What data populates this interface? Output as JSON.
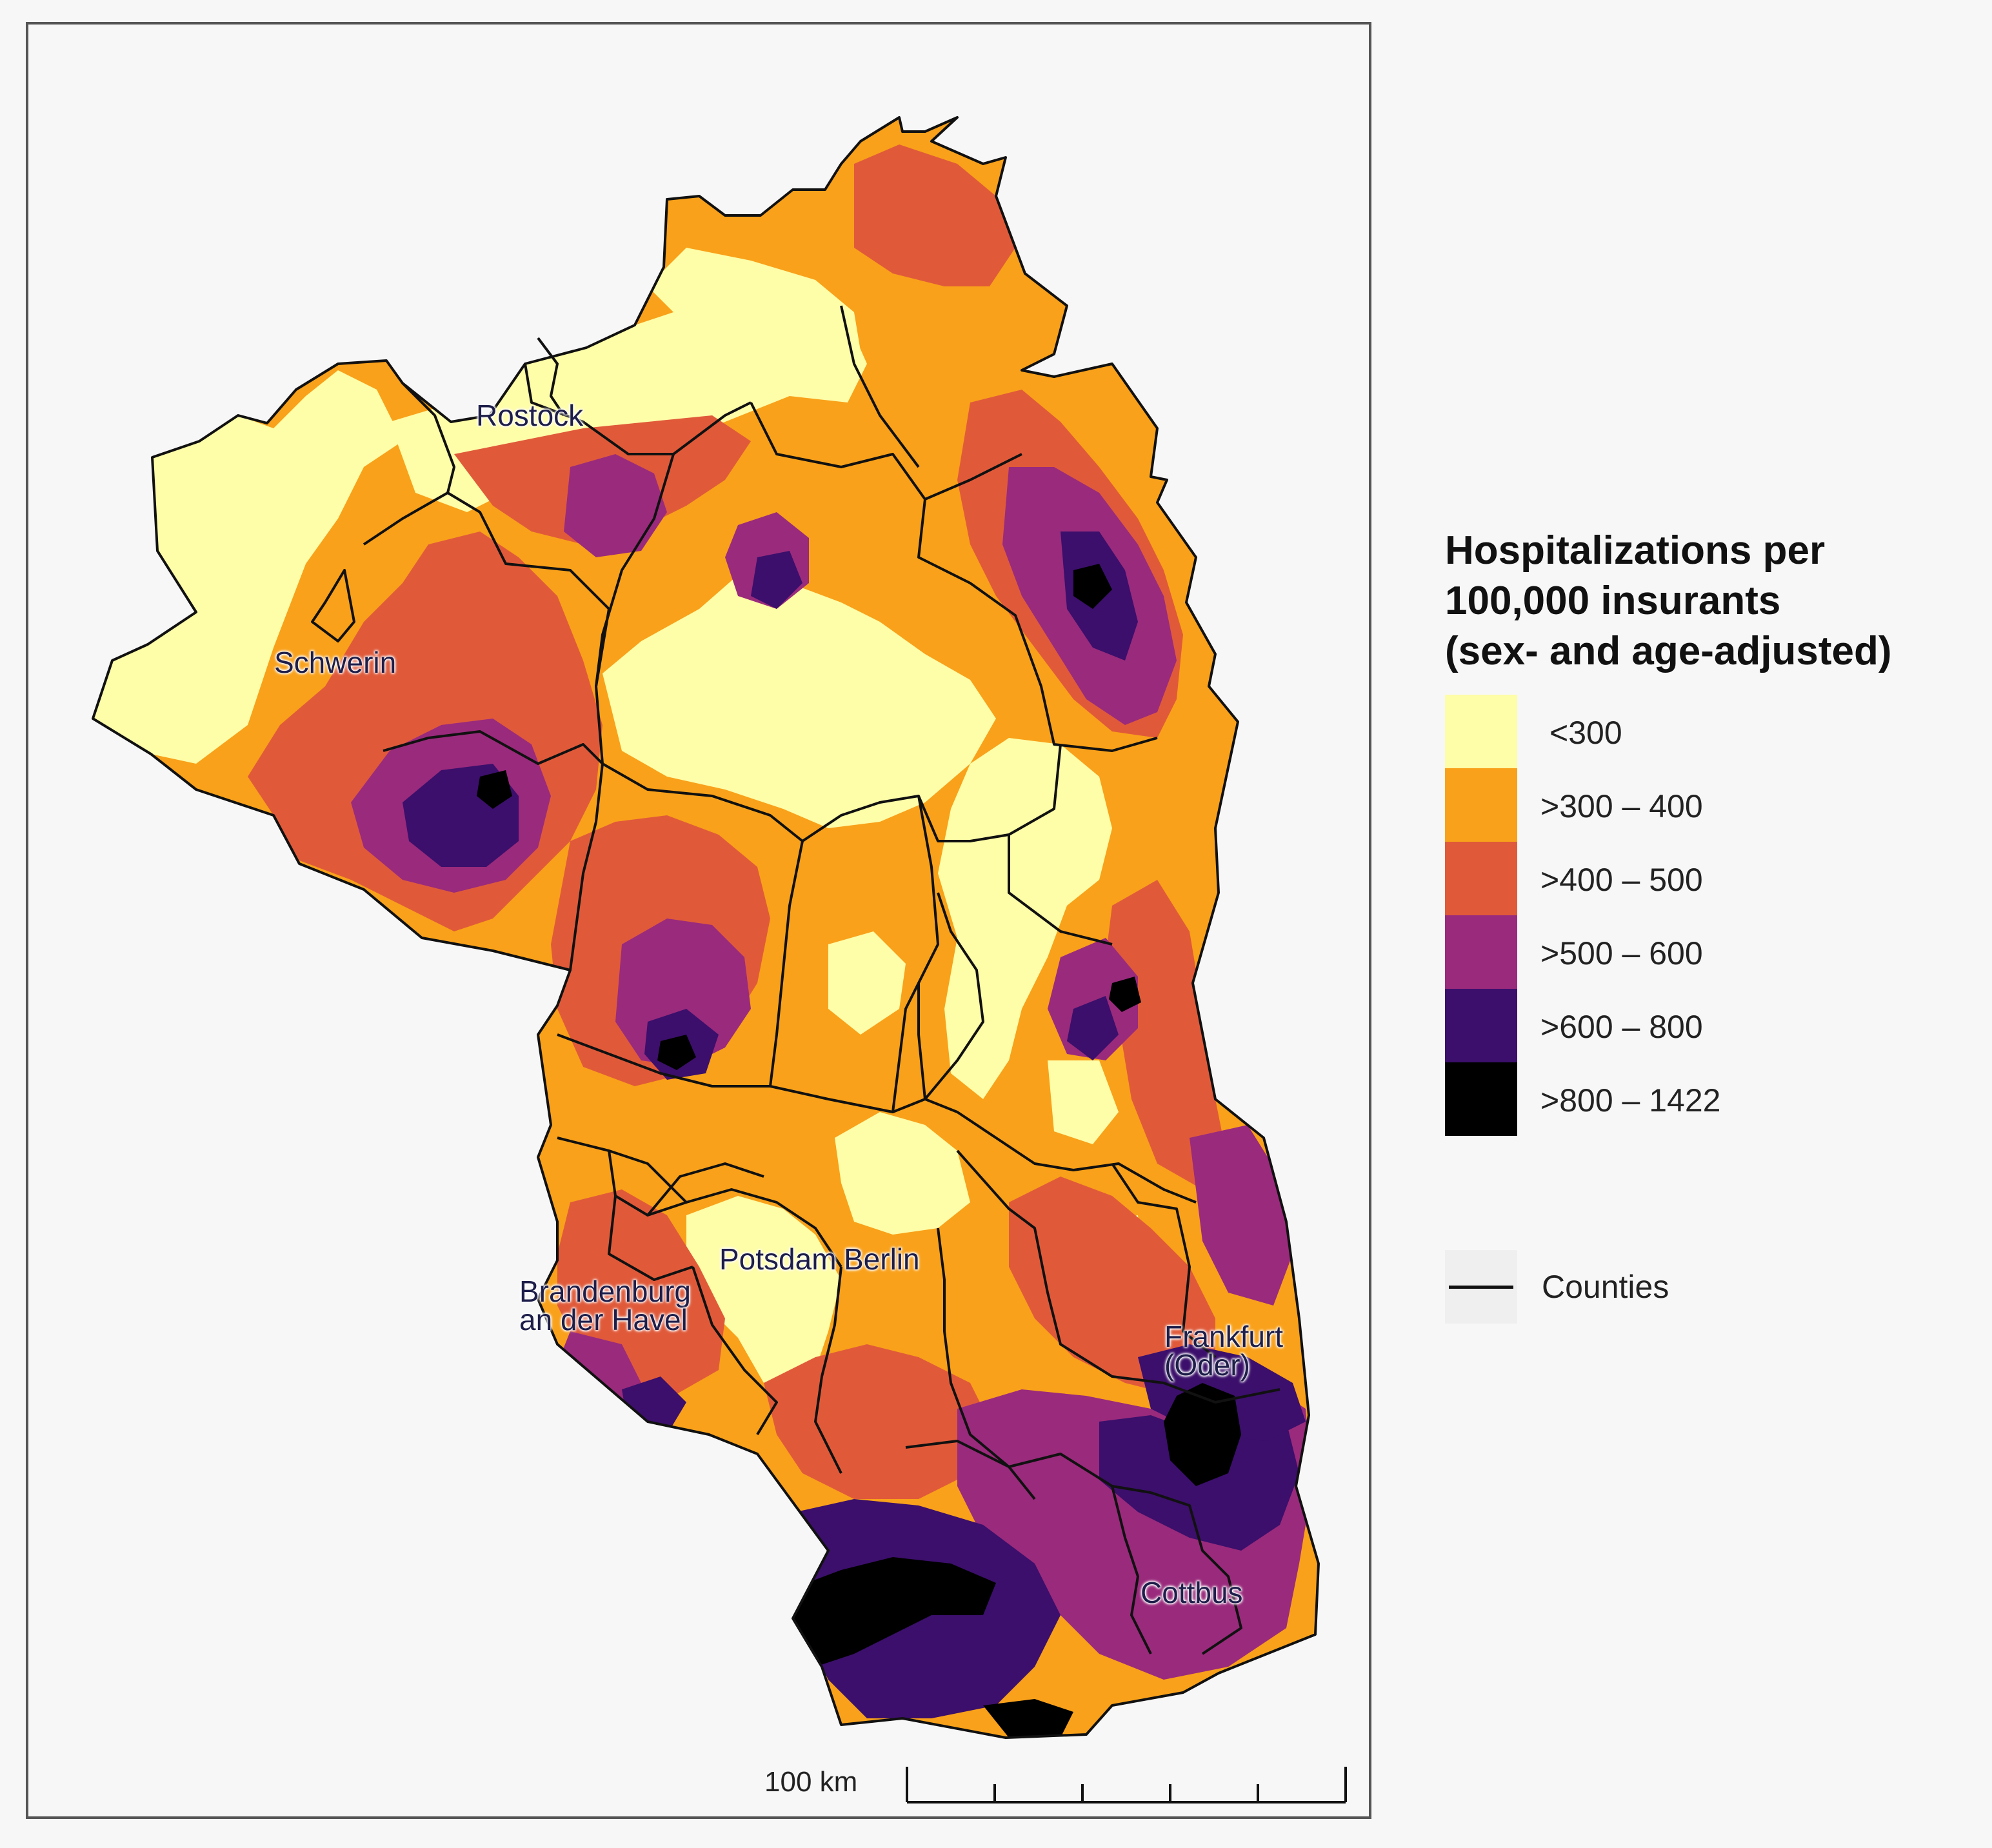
{
  "map": {
    "cities": [
      {
        "name": "Rostock",
        "text": "Rostock"
      },
      {
        "name": "Schwerin",
        "text": "Schwerin"
      },
      {
        "name": "Potsdam",
        "text": "Potsdam"
      },
      {
        "name": "Berlin",
        "text": "Berlin"
      },
      {
        "name": "Brandenburg",
        "text": "Brandenburg\nan der Havel"
      },
      {
        "name": "Frankfurt",
        "text": "Frankfurt\n(Oder)"
      },
      {
        "name": "Cottbus",
        "text": "Cottbus"
      }
    ],
    "scale_label": "100 km",
    "colors": {
      "c1": "#fefda8",
      "c2": "#f9a11a",
      "c3": "#e05a3a",
      "c4": "#9a2a7c",
      "c5": "#3b0f6b",
      "c6": "#000000",
      "border": "#111111"
    }
  },
  "legend": {
    "title": "Hospitalizations per\n100,000 insurants\n(sex- and age-adjusted)",
    "classes": [
      {
        "label": "<300",
        "color": "#fefda8"
      },
      {
        "label": ">300 – 400",
        "color": "#f9a11a"
      },
      {
        "label": ">400 – 500",
        "color": "#e05a3a"
      },
      {
        "label": ">500 – 600",
        "color": "#9a2a7c"
      },
      {
        "label": ">600 – 800",
        "color": "#3b0f6b"
      },
      {
        "label": ">800 – 1422",
        "color": "#000000"
      }
    ],
    "counties_label": "Counties"
  }
}
